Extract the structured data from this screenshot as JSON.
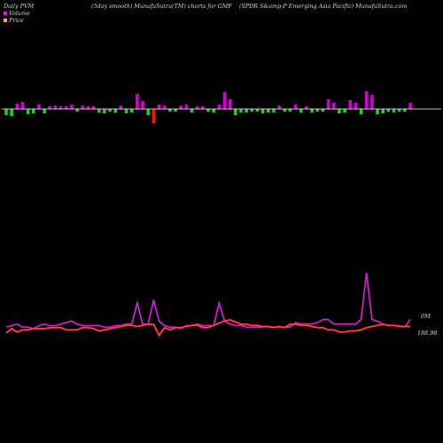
{
  "header": {
    "left": "Daily PVM",
    "center": "(5day smooth) MunafaSutra(TM) charts for GMF",
    "right": "(SPDR S&amp;P Emerging Asia Pacific) MunafaSutra.com"
  },
  "legend": [
    {
      "label": "Volume",
      "color": "#ff00ff"
    },
    {
      "label": "Price",
      "color": "#ffa07a"
    }
  ],
  "colors": {
    "up": "#d100d1",
    "down": "#22cc22",
    "neg": "#ff1010",
    "volume_line": "#b000b0",
    "price_line": "#ff2020",
    "axis": "#ffffff"
  },
  "chart_data": {
    "type": "bar",
    "title": "",
    "y_labels": {
      "volume": "0M",
      "price": "188.98"
    },
    "volume": [
      4,
      5,
      6,
      4,
      4,
      3,
      5,
      6,
      5,
      5,
      6,
      7,
      8,
      6,
      5,
      5,
      5,
      5,
      4,
      4,
      5,
      5,
      6,
      6,
      20,
      6,
      6,
      22,
      8,
      5,
      4,
      4,
      3,
      5,
      5,
      6,
      5,
      5,
      5,
      20,
      8,
      6,
      5,
      5,
      4,
      4,
      4,
      4,
      4,
      4,
      4,
      4,
      4,
      7,
      6,
      6,
      6,
      7,
      9,
      9,
      6,
      6,
      6,
      6,
      6,
      9,
      40,
      9,
      8,
      6,
      5,
      5,
      5,
      4,
      9
    ],
    "price": [
      183,
      187,
      184,
      186,
      186,
      187,
      187,
      187,
      188,
      188,
      188,
      186,
      186,
      186,
      188,
      188,
      187,
      185,
      186,
      187,
      188,
      189,
      190,
      190,
      189,
      190,
      191,
      191,
      181,
      188,
      186,
      188,
      188,
      189,
      190,
      190,
      188,
      188,
      190,
      192,
      194,
      195,
      193,
      191,
      191,
      190,
      190,
      189,
      189,
      188,
      189,
      188,
      191,
      191,
      190,
      190,
      189,
      188,
      188,
      186,
      186,
      184,
      184,
      185,
      185,
      186,
      188,
      189,
      190,
      191,
      190,
      190,
      189,
      189,
      189
    ],
    "bars": [
      -7,
      -8,
      6,
      8,
      -6,
      -5,
      5,
      -5,
      3,
      4,
      3,
      3,
      5,
      -3,
      4,
      3,
      3,
      -4,
      -5,
      -3,
      -4,
      4,
      -5,
      -4,
      17,
      9,
      -7,
      -16,
      5,
      4,
      -3,
      -3,
      4,
      5,
      -4,
      3,
      3,
      -3,
      -4,
      5,
      19,
      11,
      -7,
      -4,
      -4,
      -3,
      -3,
      -5,
      -4,
      -4,
      4,
      -3,
      -3,
      5,
      -4,
      3,
      -4,
      -3,
      -3,
      11,
      7,
      -5,
      -4,
      10,
      7,
      -6,
      20,
      16,
      -6,
      -5,
      -3,
      -4,
      -3,
      -3,
      7
    ]
  }
}
